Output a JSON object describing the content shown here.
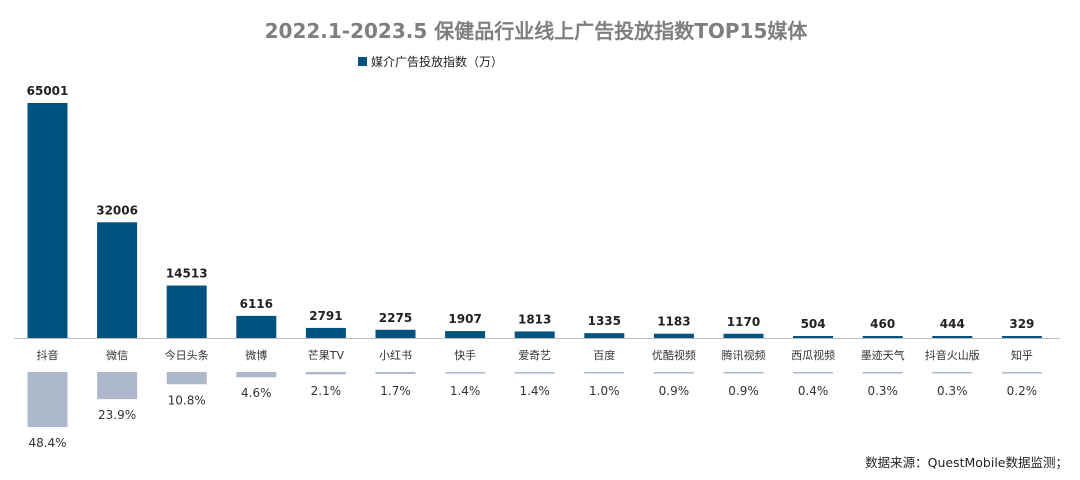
{
  "chart_data": {
    "type": "bar",
    "title": "2022.1-2023.5 保健品行业线上广告投放指数TOP15媒体",
    "legend": "媒介广告投放指数（万）",
    "legend_position": "top",
    "categories": [
      "抖音",
      "微信",
      "今日头条",
      "微博",
      "芒果TV",
      "小红书",
      "快手",
      "爱奇艺",
      "百度",
      "优酷视频",
      "腾讯视频",
      "西瓜视频",
      "墨迹天气",
      "抖音火山版",
      "知乎"
    ],
    "series": [
      {
        "name": "媒介广告投放指数（万）",
        "values": [
          65001,
          32006,
          14513,
          6116,
          2791,
          2275,
          1907,
          1813,
          1335,
          1183,
          1170,
          504,
          460,
          444,
          329
        ]
      }
    ],
    "value_labels": [
      "65001",
      "32006",
      "14513",
      "6116",
      "2791",
      "2275",
      "1907",
      "1813",
      "1335",
      "1183",
      "1170",
      "504",
      "460",
      "444",
      "329"
    ],
    "share_percent": [
      48.4,
      23.9,
      10.8,
      4.6,
      2.1,
      1.7,
      1.4,
      1.4,
      1.0,
      0.9,
      0.9,
      0.4,
      0.3,
      0.3,
      0.2
    ],
    "share_labels": [
      "48.4%",
      "23.9%",
      "10.8%",
      "4.6%",
      "2.1%",
      "1.7%",
      "1.4%",
      "1.4%",
      "1.0%",
      "0.9%",
      "0.9%",
      "0.4%",
      "0.3%",
      "0.3%",
      "0.2%"
    ],
    "grid": false,
    "colors": {
      "bar": "#00527f",
      "share_bar": "#adb9ca",
      "axis": "#bfbfbf",
      "title": "#7f7f7f"
    }
  },
  "source_note": "数据来源：QuestMobile数据监测；"
}
